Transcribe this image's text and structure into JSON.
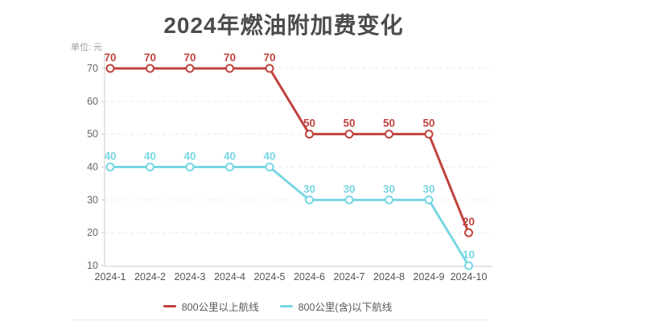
{
  "chart_data": {
    "type": "line",
    "title": "2024年燃油附加费变化",
    "unit_label": "单位: 元",
    "categories": [
      "2024-1",
      "2024-2",
      "2024-3",
      "2024-4",
      "2024-5",
      "2024-6",
      "2024-7",
      "2024-8",
      "2024-9",
      "2024-10"
    ],
    "series": [
      {
        "name": "800公里以上航线",
        "color": "#c0423c",
        "values": [
          70,
          70,
          70,
          70,
          70,
          50,
          50,
          50,
          50,
          20
        ]
      },
      {
        "name": "800公里(含)以下航线",
        "color": "#77d6e3",
        "values": [
          40,
          40,
          40,
          40,
          40,
          30,
          30,
          30,
          30,
          10
        ]
      }
    ],
    "y_ticks": [
      10,
      20,
      30,
      40,
      50,
      60,
      70
    ],
    "ylim": [
      10,
      70
    ],
    "grid": "horizontal-dashed",
    "legend_position": "bottom",
    "colors": {
      "axis": "#cccccc",
      "grid": "#e9e9e9",
      "y_tick_label": "#666666",
      "x_tick_label": "#555555",
      "title_text": "#4c4c4c",
      "legend_text": "#595959",
      "marker_fill": "#ffffff"
    }
  }
}
